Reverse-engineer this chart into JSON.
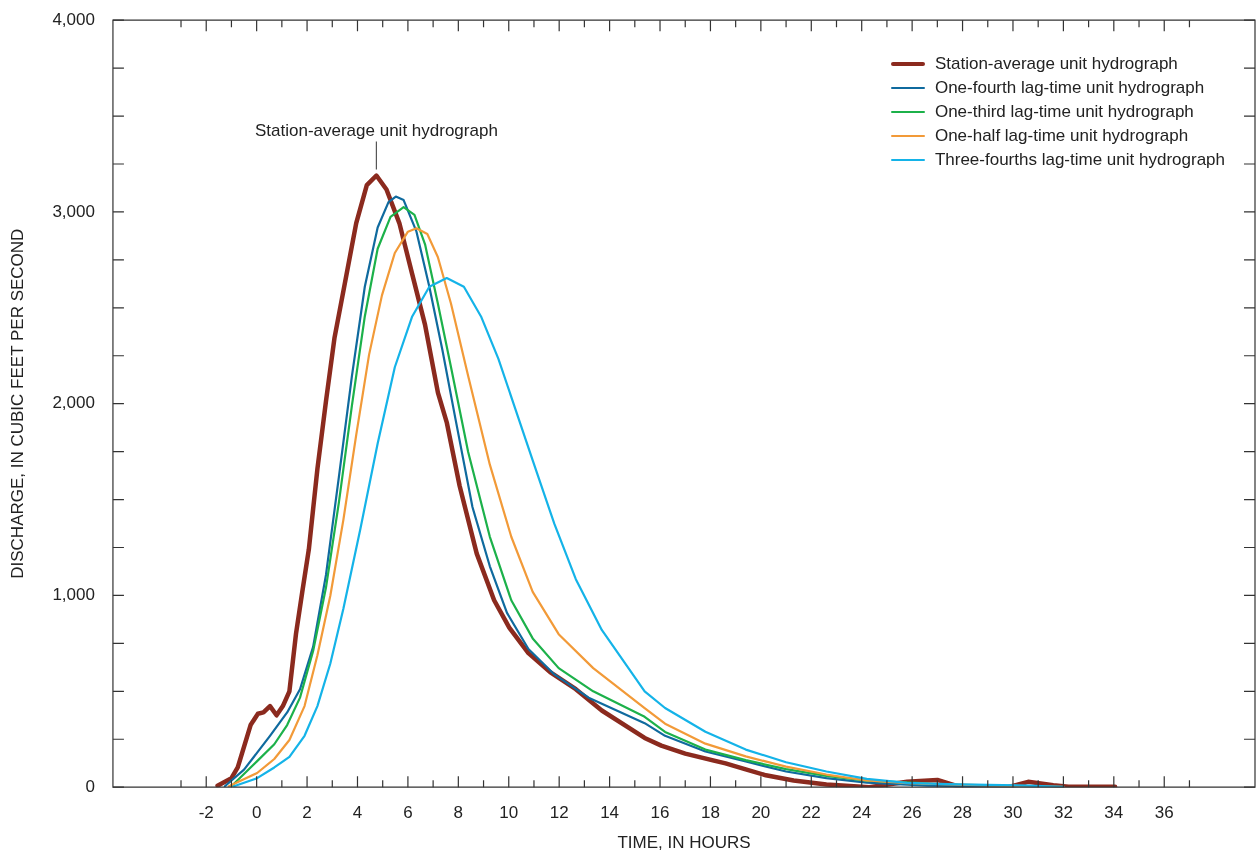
{
  "chart_data": {
    "type": "line",
    "xlabel": "TIME, IN HOURS",
    "ylabel": "DISCHARGE, IN CUBIC FEET PER SECOND",
    "xlim": [
      -5.7,
      39.6
    ],
    "ylim": [
      0,
      4000
    ],
    "xticks": [
      {
        "value": -3,
        "label": null
      },
      -2,
      {
        "value": -1,
        "label": null
      },
      0,
      {
        "value": 1,
        "label": null
      },
      2,
      {
        "value": 3,
        "label": null
      },
      4,
      {
        "value": 5,
        "label": null
      },
      6,
      {
        "value": 7,
        "label": null
      },
      8,
      {
        "value": 9,
        "label": null
      },
      10,
      {
        "value": 11,
        "label": null
      },
      12,
      {
        "value": 13,
        "label": null
      },
      14,
      {
        "value": 15,
        "label": null
      },
      16,
      {
        "value": 17,
        "label": null
      },
      18,
      {
        "value": 19,
        "label": null
      },
      20,
      {
        "value": 21,
        "label": null
      },
      22,
      {
        "value": 23,
        "label": null
      },
      24,
      {
        "value": 25,
        "label": null
      },
      26,
      {
        "value": 27,
        "label": null
      },
      28,
      {
        "value": 29,
        "label": null
      },
      30,
      {
        "value": 31,
        "label": null
      },
      32,
      {
        "value": 33,
        "label": null
      },
      34,
      {
        "value": 35,
        "label": null
      },
      36,
      {
        "value": 37,
        "label": null
      }
    ],
    "yticks": [
      0,
      {
        "value": 250,
        "label": null
      },
      {
        "value": 500,
        "label": null
      },
      {
        "value": 750,
        "label": null
      },
      {
        "value": 1000,
        "label": "1,000"
      },
      {
        "value": 1250,
        "label": null
      },
      {
        "value": 1500,
        "label": null
      },
      {
        "value": 1750,
        "label": null
      },
      {
        "value": 2000,
        "label": "2,000"
      },
      {
        "value": 2250,
        "label": null
      },
      {
        "value": 2500,
        "label": null
      },
      {
        "value": 2750,
        "label": null
      },
      {
        "value": 3000,
        "label": "3,000"
      },
      {
        "value": 3250,
        "label": null
      },
      {
        "value": 3500,
        "label": null
      },
      {
        "value": 3750,
        "label": null
      },
      {
        "value": 4000,
        "label": "4,000"
      }
    ],
    "grid": false,
    "legend": "top right",
    "marker": "none",
    "annotations": [
      {
        "text": "Station-average unit hydrograph",
        "x": 4.75,
        "y": 3190
      }
    ],
    "series": [
      {
        "name": "Station-average unit hydrograph",
        "color": "#8b2a1e",
        "x": [
          -1.55,
          -1.0,
          -0.75,
          -0.24,
          0.05,
          0.27,
          0.53,
          0.79,
          1.04,
          1.3,
          1.56,
          1.81,
          2.07,
          2.41,
          2.75,
          3.09,
          3.44,
          3.95,
          4.37,
          4.75,
          5.15,
          5.66,
          6.17,
          6.68,
          7.19,
          7.54,
          8.05,
          8.73,
          9.42,
          10.02,
          10.78,
          11.64,
          12.66,
          13.69,
          15.39,
          16.05,
          17.0,
          18.6,
          19.4,
          20.2,
          21.3,
          22.6,
          24.3,
          25.8,
          27.0,
          27.8,
          29.8,
          30.6,
          31.6,
          32.2,
          34.05
        ],
        "values": [
          8,
          47,
          103,
          324,
          383,
          390,
          423,
          375,
          423,
          500,
          799,
          1019,
          1240,
          1660,
          2013,
          2345,
          2587,
          2942,
          3140,
          3190,
          3117,
          2942,
          2676,
          2411,
          2058,
          1903,
          1572,
          1218,
          975,
          832,
          699,
          600,
          511,
          400,
          257,
          217,
          175,
          124,
          93,
          62,
          35,
          14,
          0,
          28,
          38,
          5,
          0,
          28,
          10,
          3,
          3
        ]
      },
      {
        "name": "One-fourth lag-time unit hydrograph",
        "color": "#0f6a9e",
        "x": [
          -1.26,
          -0.5,
          0.02,
          0.53,
          1.21,
          1.72,
          2.24,
          2.75,
          3.26,
          3.78,
          4.29,
          4.8,
          5.23,
          5.52,
          5.83,
          6.34,
          6.85,
          7.37,
          7.88,
          8.56,
          9.25,
          9.93,
          10.78,
          11.81,
          13.17,
          15.39,
          16.2,
          17.8,
          19.4,
          21.0,
          22.6,
          24.2,
          26.6,
          29.0,
          32.0
        ],
        "values": [
          5,
          92,
          180,
          268,
          390,
          511,
          732,
          1107,
          1616,
          2145,
          2610,
          2919,
          3051,
          3080,
          3062,
          2897,
          2610,
          2279,
          1925,
          1461,
          1152,
          909,
          721,
          588,
          467,
          334,
          268,
          186,
          134,
          82,
          47,
          24,
          8,
          4,
          0
        ]
      },
      {
        "name": "One-third lag-time unit hydrograph",
        "color": "#1cb14a",
        "x": [
          -1.0,
          0.02,
          0.7,
          1.21,
          1.72,
          2.24,
          2.75,
          3.26,
          3.78,
          4.29,
          4.8,
          5.31,
          5.83,
          6.26,
          6.68,
          7.19,
          7.71,
          8.39,
          9.25,
          10.1,
          10.95,
          11.98,
          13.35,
          15.39,
          16.2,
          17.8,
          19.4,
          21.0,
          22.6,
          24.2,
          26.6
        ],
        "values": [
          5,
          136,
          224,
          324,
          467,
          710,
          1041,
          1483,
          1991,
          2455,
          2808,
          2974,
          3025,
          2985,
          2831,
          2521,
          2190,
          1748,
          1306,
          975,
          776,
          621,
          500,
          367,
          288,
          196,
          141,
          94,
          59,
          34,
          20
        ]
      },
      {
        "name": "One-half lag-time unit hydrograph",
        "color": "#f29a38",
        "x": [
          -1.1,
          0.02,
          0.7,
          1.3,
          1.9,
          2.41,
          2.92,
          3.44,
          3.95,
          4.46,
          4.97,
          5.48,
          6.0,
          6.34,
          6.77,
          7.19,
          7.71,
          8.39,
          9.25,
          10.1,
          10.95,
          11.98,
          13.35,
          15.39,
          16.2,
          17.8,
          19.4,
          21.0,
          22.6,
          24.2,
          25.8,
          29.0,
          32.0
        ],
        "values": [
          5,
          74,
          147,
          246,
          423,
          688,
          997,
          1394,
          1837,
          2256,
          2565,
          2786,
          2897,
          2915,
          2885,
          2764,
          2521,
          2145,
          1682,
          1306,
          1019,
          798,
          621,
          412,
          331,
          227,
          161,
          107,
          66,
          35,
          21,
          10,
          2
        ]
      },
      {
        "name": "Three-fourths lag-time unit hydrograph",
        "color": "#14b3e8",
        "x": [
          -0.9,
          0.02,
          0.7,
          1.3,
          1.9,
          2.41,
          2.92,
          3.44,
          4.12,
          4.8,
          5.48,
          6.17,
          6.85,
          7.54,
          8.22,
          8.9,
          9.59,
          10.27,
          10.95,
          11.81,
          12.66,
          13.69,
          15.39,
          16.2,
          17.8,
          19.4,
          21.0,
          22.6,
          24.2,
          25.8,
          27.4,
          29.0,
          30.6,
          32.0
        ],
        "values": [
          5,
          47,
          103,
          158,
          268,
          423,
          644,
          931,
          1351,
          1792,
          2190,
          2455,
          2610,
          2655,
          2610,
          2455,
          2234,
          1969,
          1704,
          1373,
          1085,
          820,
          500,
          413,
          289,
          196,
          130,
          82,
          43,
          23,
          16,
          12,
          8,
          2
        ]
      }
    ]
  }
}
